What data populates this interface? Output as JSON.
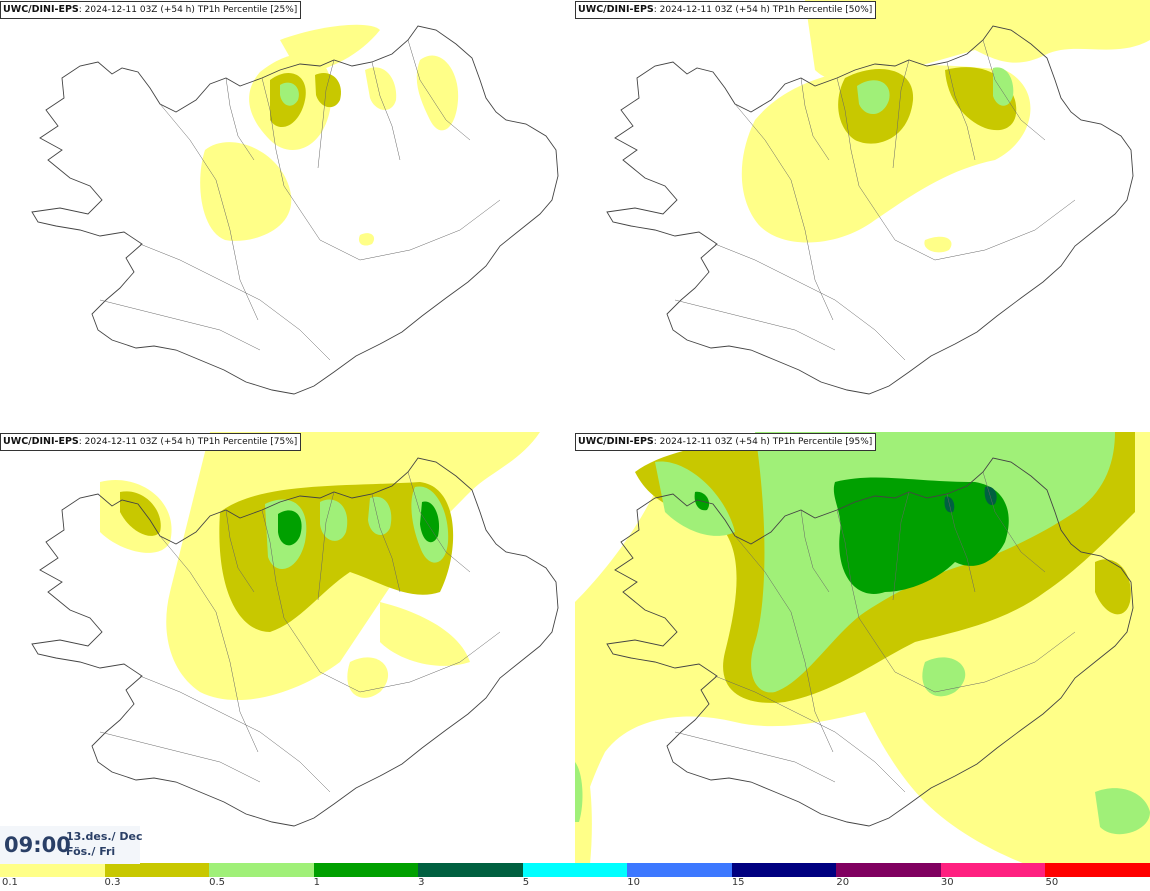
{
  "panels": [
    {
      "model": "UWC/DINI-EPS",
      "run": ": 2024-12-11 03Z (+54 h)",
      "field": " TP1h Percentile [25%]"
    },
    {
      "model": "UWC/DINI-EPS",
      "run": ": 2024-12-11 03Z (+54 h)",
      "field": " TP1h Percentile [50%]"
    },
    {
      "model": "UWC/DINI-EPS",
      "run": ": 2024-12-11 03Z (+54 h)",
      "field": " TP1h Percentile [75%]"
    },
    {
      "model": "UWC/DINI-EPS",
      "run": ": 2024-12-11 03Z (+54 h)",
      "field": " TP1h Percentile [95%]"
    }
  ],
  "valid_time": {
    "clock": "09:00",
    "date_line1": "13.des./ Dec",
    "date_line2": "Fös./ Fri"
  },
  "legend": {
    "colors": [
      "#ffff88",
      "#c8c800",
      "#a0f078",
      "#00a000",
      "#006040",
      "#00ffff",
      "#3c78ff",
      "#000080",
      "#800060",
      "#ff2080",
      "#ff0000"
    ],
    "labels": [
      "0.1",
      "0.3",
      "0.5",
      "1",
      "3",
      "5",
      "10",
      "15",
      "20",
      "30",
      "50"
    ]
  }
}
